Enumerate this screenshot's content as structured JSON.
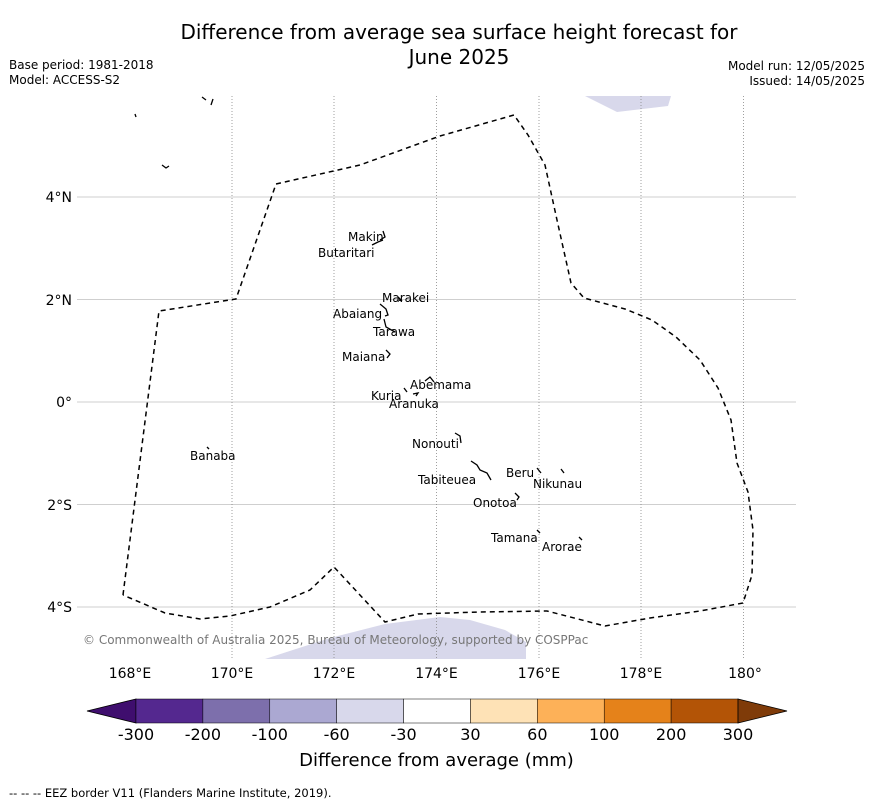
{
  "header": {
    "title_line1": "Difference from average sea surface height forecast for",
    "title_line2": "June 2025",
    "base_period": "Base period: 1981-2018",
    "model": "Model: ACCESS-S2",
    "model_run": "Model run: 12/05/2025",
    "issued": "Issued: 14/05/2025"
  },
  "map": {
    "copyright": "© Commonwealth of Australia 2025, Bureau of Meteorology, supported by COSPPac",
    "lon_ticks": [
      "168°E",
      "170°E",
      "172°E",
      "174°E",
      "176°E",
      "178°E",
      "180°"
    ],
    "lat_ticks": [
      "4°N",
      "2°N",
      "0°",
      "2°S",
      "4°S"
    ],
    "islands": [
      "Makin",
      "Butaritari",
      "Marakei",
      "Abaiang",
      "Tarawa",
      "Maiana",
      "Abemama",
      "Kuria",
      "Aranuka",
      "Nonouti",
      "Banaba",
      "Beru",
      "Tabiteuea",
      "Nikunau",
      "Onotoa",
      "Tamana",
      "Arorae"
    ]
  },
  "colorbar": {
    "colors": [
      "#3f0e6e",
      "#54288f",
      "#7d6fac",
      "#aba8d2",
      "#d8d8eb",
      "#ffffff",
      "#fee2b6",
      "#fdb158",
      "#e5821a",
      "#b35406",
      "#7f3b09"
    ],
    "ticks": [
      "-300",
      "-200",
      "-100",
      "-60",
      "-30",
      "30",
      "60",
      "100",
      "200",
      "300"
    ],
    "label": "Difference from average (mm)"
  },
  "footnote": "--  --  -- EEZ border V11 (Flanders Marine Institute, 2019)."
}
